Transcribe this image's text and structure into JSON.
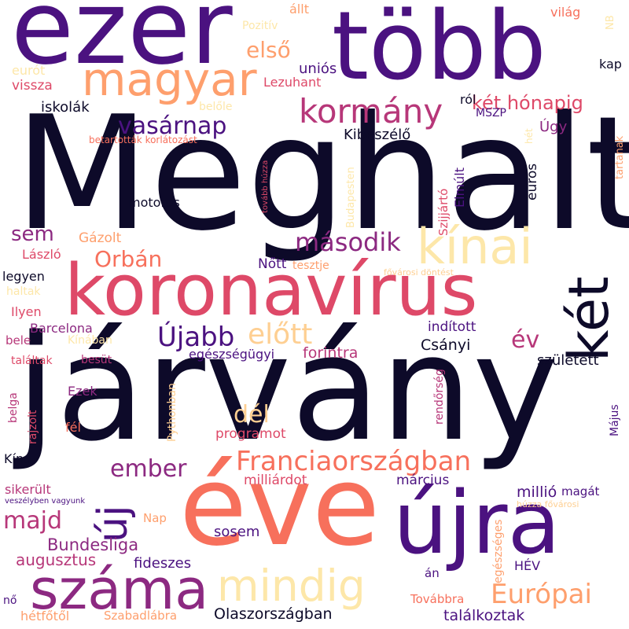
{
  "colors": {
    "c1": "#0d0a29",
    "c2": "#4b1280",
    "c3": "#8c2981",
    "c4": "#b73779",
    "c5": "#de4968",
    "c6": "#f7705c",
    "c7": "#fe9f6d",
    "c8": "#fecf92",
    "c9": "#fde7a9"
  },
  "words": {
    "meghalt": "Meghalt",
    "jarvany": "járvány",
    "eve": "éve",
    "koronavirus": "koronavírus",
    "tobb": "több",
    "ezer": "ezer",
    "ujra": "újra",
    "szama": "száma",
    "magyar": "magyar",
    "ket": "két",
    "kinai": "kínai",
    "mindig": "mindig",
    "kormany": "kormány",
    "franciaorszagban": "Franciaországban",
    "europai": "Európai",
    "uj": "új",
    "ujabb": "Újabb",
    "elott": "előtt",
    "masodik": "második",
    "vasarnap": "vasárnap",
    "orban": "Orbán",
    "ember": "ember",
    "majd": "majd",
    "del": "dél",
    "ev": "év",
    "elso": "első",
    "sem": "sem",
    "ket_honapig": "két hónapig",
    "bundesliga": "Bundesliga",
    "augusztus": "augusztus",
    "olaszorszagban": "Olaszországban",
    "talalkoztak": "találkoztak",
    "fideszes": "fideszes",
    "sosem": "sosem",
    "millio": "millió",
    "marcius": "március",
    "milliardot": "milliárdot",
    "programot": "programot",
    "forintra": "forintra",
    "egeszsegugyi": "egészségügyi",
    "csanyi": "Csányi",
    "szuletett": "született",
    "inditott": "indított",
    "kibeszelo": "Kibeszélő",
    "unios": "uniós",
    "vissza": "vissza",
    "iskolak": "iskolák",
    "lezuhant": "Lezuhant",
    "allt": "állt",
    "vilag": "világ",
    "kap": "kap",
    "rol": "ról",
    "mszp": "MSZP",
    "ugy": "Úgy",
    "motoros": "motoros",
    "gazolt": "Gázolt",
    "laszlo": "László",
    "legyen": "legyen",
    "nott": "Nőtt",
    "tesztje": "tesztje",
    "barcelona": "Barcelona",
    "ilyen": "Ilyen",
    "bele": "bele",
    "kinaban": "Kínában",
    "talaltak": "találtak",
    "besut": "besüt",
    "ezek": "Ezek",
    "fel": "fél",
    "kina": "Kína",
    "sikerult": "sikerült",
    "veszelyben": "veszélyben vagyunk",
    "nap": "Nap",
    "magat": "magát",
    "huzza_fovarosi": "húzza fővárosi",
    "no": "nő",
    "hetfotol": "hétfőtől",
    "szabadlabra": "Szabadlábra",
    "tovabbra": "Továbbra",
    "an": "án",
    "hev": "HÉV",
    "pozitiv": "Pozitív",
    "eurot": "eurót",
    "belole": "belőle",
    "betartottak": "betartották korlátozást",
    "fovarosi_dontest": "fővárosi döntést",
    "haltak": "haltak",
    "elmult": "Elmúlt",
    "euros": "eurós",
    "szijjarto": "Szijjártó",
    "budapesten": "Budapesten",
    "tovabb_huzza": "tovább húzza",
    "het": "hét",
    "tartanak": "tartanak",
    "nb": "NB",
    "rendorseg": "rendőrség",
    "majus": "Május",
    "egeszseges": "egészséges",
    "pythonban": "Pythonban",
    "rajzolt": "rajzolt",
    "belga": "belga"
  }
}
